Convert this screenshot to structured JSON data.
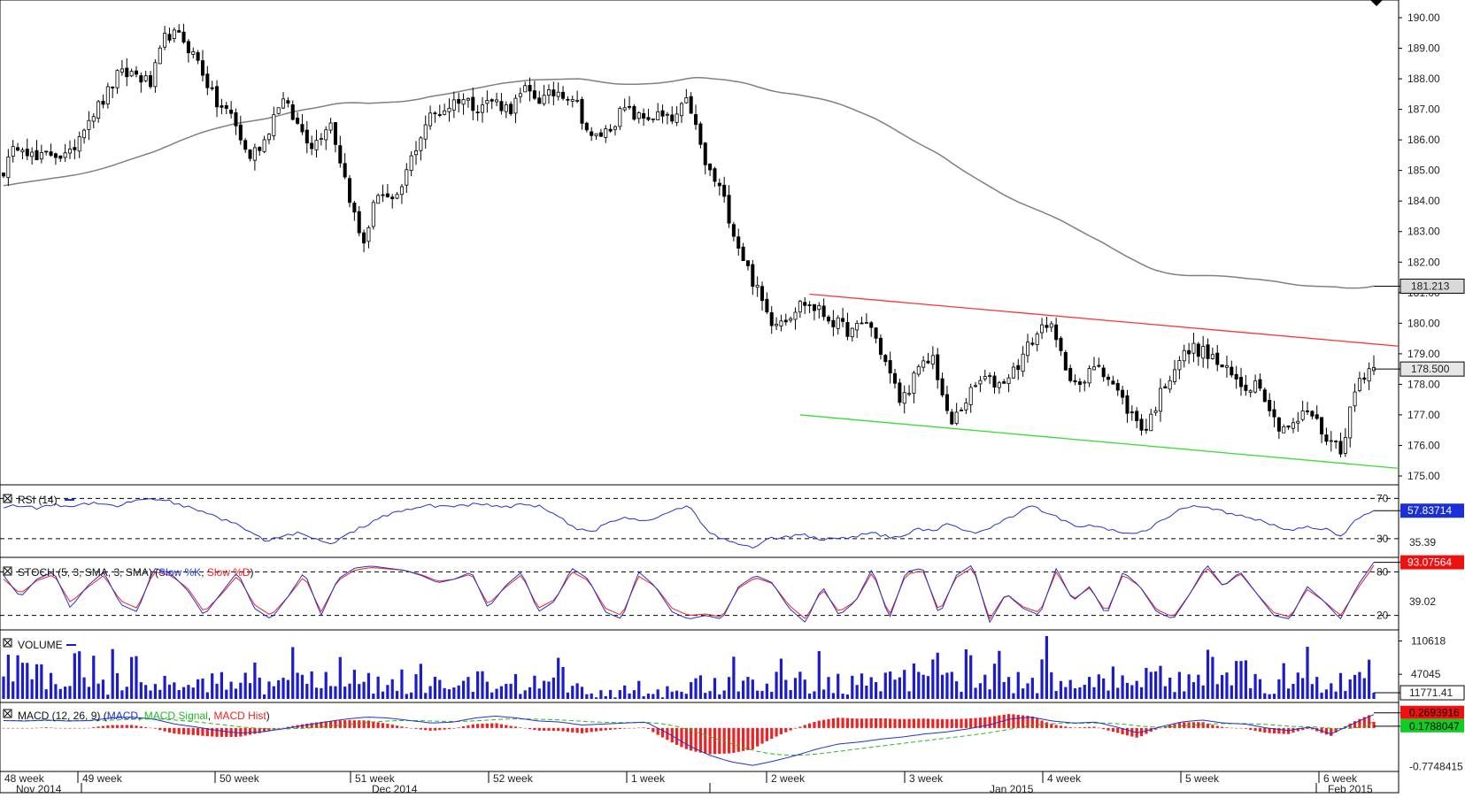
{
  "colors": {
    "up_candle": "#ffffff",
    "down_candle": "#000000",
    "candle_outline": "#000000",
    "sma_line": "#808080",
    "resistance_line": "#ff3333",
    "support_line": "#33dd33",
    "rsi_line": "#2233cc",
    "stoch_k": "#2233cc",
    "stoch_d": "#ee2222",
    "volume_bar": "#1c1ccc",
    "macd_line": "#2233cc",
    "macd_signal": "#22bb22",
    "macd_hist": "#ee2222",
    "current_price_box": "#d9d9d9",
    "rsi_value_box": "#1a2fd6",
    "stoch_value_box": "#ee1111",
    "macd_value_box_red": "#ee1111",
    "macd_value_box_green": "#11cc22"
  },
  "chart_data": [
    {
      "type": "candlestick",
      "panel": "price",
      "ylim": [
        175.0,
        190.0
      ],
      "y_ticks": [
        "190.00",
        "189.00",
        "188.00",
        "187.00",
        "186.00",
        "185.00",
        "184.00",
        "183.00",
        "182.00",
        "181.00",
        "180.00",
        "179.00",
        "178.00",
        "177.00",
        "176.00",
        "175.00"
      ],
      "current_price_label": "178.500",
      "current_price": 178.5,
      "sma_label": "181.213",
      "sma_value": 181.213,
      "resistance_line": {
        "start": 180.95,
        "end": 179.25
      },
      "support_line": {
        "start": 177.0,
        "end": 175.25
      },
      "anchors": [
        185.0,
        186.0,
        185.3,
        185.6,
        185.4,
        186.6,
        187.2,
        188.1,
        188.2,
        187.8,
        189.5,
        189.3,
        188.5,
        187.2,
        186.8,
        185.4,
        186.0,
        187.4,
        186.5,
        185.8,
        186.7,
        184.6,
        182.5,
        184.4,
        183.8,
        185.4,
        186.7,
        187.0,
        187.4,
        187.1,
        187.3,
        187.0,
        187.6,
        187.3,
        187.6,
        187.4,
        186.0,
        186.3,
        187.0,
        186.7,
        186.8,
        186.6,
        187.3,
        185.2,
        184.3,
        182.6,
        181.3,
        180.1,
        180.2,
        180.7,
        180.4,
        180.0,
        179.7,
        180.1,
        178.8,
        177.4,
        178.4,
        178.9,
        176.6,
        177.5,
        178.2,
        178.0,
        178.5,
        179.4,
        180.1,
        178.7,
        177.8,
        178.8,
        178.0,
        177.1,
        176.5,
        177.8,
        178.8,
        179.2,
        178.9,
        178.4,
        177.9,
        178.1,
        176.7,
        176.6,
        177.2,
        176.3,
        175.9,
        178.1,
        178.7
      ],
      "last_candle": {
        "open": 178.45,
        "high": 178.95,
        "low": 178.3,
        "close": 178.55
      }
    },
    {
      "type": "line",
      "panel": "rsi",
      "title": "RSI (14)",
      "levels": [
        70,
        30
      ],
      "ylim": [
        15,
        80
      ],
      "level_labels": [
        "70",
        "30"
      ],
      "extra_label": "35.39",
      "value_label": "57.83714",
      "value": 57.83714,
      "anchors": [
        62,
        63,
        60,
        64,
        62,
        65,
        66,
        62,
        68,
        70,
        68,
        63,
        57,
        52,
        46,
        38,
        28,
        32,
        36,
        30,
        24,
        33,
        42,
        50,
        56,
        59,
        63,
        62,
        63,
        64,
        63,
        62,
        64,
        62,
        52,
        40,
        36,
        45,
        52,
        48,
        50,
        58,
        64,
        40,
        30,
        24,
        22,
        30,
        32,
        34,
        30,
        29,
        31,
        36,
        33,
        30,
        40,
        38,
        45,
        38,
        36,
        46,
        54,
        62,
        56,
        48,
        42,
        44,
        38,
        35,
        38,
        48,
        58,
        62,
        60,
        56,
        52,
        48,
        42,
        38,
        42,
        40,
        32,
        50,
        57.8
      ]
    },
    {
      "type": "line",
      "panel": "stochastic",
      "title": "STOCH (5, 3, SMA, 3, SMA)",
      "legend": [
        "Slow %K",
        "Slow %D"
      ],
      "levels": [
        80,
        20
      ],
      "ylim": [
        5,
        95
      ],
      "level_labels": [
        "80",
        "20"
      ],
      "extra_label": "39.02",
      "value_label": "93.07564",
      "value": 93.07564,
      "k_anchors": [
        75,
        45,
        70,
        80,
        30,
        60,
        80,
        35,
        25,
        85,
        78,
        55,
        20,
        50,
        80,
        30,
        15,
        45,
        80,
        20,
        70,
        85,
        88,
        85,
        82,
        75,
        65,
        70,
        80,
        30,
        60,
        80,
        25,
        40,
        85,
        70,
        25,
        15,
        80,
        60,
        25,
        15,
        20,
        15,
        60,
        75,
        65,
        30,
        10,
        60,
        20,
        40,
        85,
        15,
        80,
        85,
        20,
        75,
        90,
        10,
        50,
        30,
        20,
        85,
        40,
        60,
        20,
        80,
        60,
        25,
        15,
        50,
        90,
        60,
        80,
        50,
        20,
        15,
        60,
        40,
        15,
        60,
        93
      ],
      "d_anchors": [
        70,
        50,
        68,
        76,
        38,
        58,
        75,
        40,
        30,
        80,
        75,
        58,
        25,
        48,
        75,
        35,
        20,
        45,
        74,
        25,
        68,
        82,
        86,
        84,
        82,
        76,
        67,
        70,
        77,
        35,
        58,
        76,
        30,
        42,
        80,
        68,
        30,
        20,
        74,
        60,
        30,
        20,
        22,
        18,
        58,
        72,
        64,
        34,
        15,
        56,
        25,
        40,
        80,
        20,
        76,
        82,
        25,
        72,
        86,
        15,
        50,
        32,
        24,
        80,
        42,
        58,
        24,
        76,
        60,
        28,
        18,
        50,
        86,
        60,
        78,
        50,
        24,
        18,
        56,
        40,
        20,
        56,
        88
      ]
    },
    {
      "type": "bar",
      "panel": "volume",
      "title": "VOLUME",
      "ylim": [
        0,
        125000
      ],
      "y_ticks": [
        "110618",
        "47045"
      ],
      "value_label": "11771.41",
      "value": 11771.41
    },
    {
      "type": "line",
      "panel": "macd",
      "title": "MACD (12, 26, 9)",
      "legend": [
        "MACD",
        "MACD Signal",
        "MACD Hist"
      ],
      "ylim": [
        -0.8,
        0.3
      ],
      "y_ticks": [
        "-0.7748415"
      ],
      "value_labels": [
        "0.2693916",
        "0.1788047"
      ],
      "values": [
        0.2693916,
        0.1788047
      ],
      "anchors": [
        0.15,
        0.14,
        0.16,
        0.14,
        0.15,
        0.2,
        0.22,
        0.18,
        0.08,
        0.02,
        -0.05,
        -0.1,
        -0.08,
        -0.02,
        0.05,
        0.12,
        0.18,
        0.22,
        0.2,
        0.15,
        0.1,
        0.12,
        0.2,
        0.24,
        0.2,
        0.14,
        0.12,
        0.06,
        0.08,
        0.1,
        0.12,
        -0.1,
        -0.35,
        -0.55,
        -0.68,
        -0.75,
        -0.66,
        -0.55,
        -0.42,
        -0.32,
        -0.28,
        -0.22,
        -0.18,
        -0.12,
        -0.08,
        -0.02,
        0.06,
        0.18,
        0.22,
        0.14,
        0.1,
        0.12,
        0.02,
        -0.1,
        0.02,
        0.12,
        0.16,
        0.1,
        0.08,
        0.0,
        -0.05,
        0.02,
        -0.12,
        0.08,
        0.27
      ]
    }
  ],
  "panels": {
    "rsi_title": "RSI (14)",
    "stoch_title": "STOCH (5, 3, SMA, 3, SMA)",
    "stoch_legend_k": "Slow %K",
    "stoch_legend_d": "Slow %D",
    "volume_title": "VOLUME",
    "macd_title": "MACD (12, 26, 9)",
    "macd_legend_macd": "MACD",
    "macd_legend_signal": "MACD Signal",
    "macd_legend_hist": "MACD Hist"
  },
  "time_axis": {
    "weeks": [
      "48 week",
      "49 week",
      "50 week",
      "51 week",
      "52 week",
      "1 week",
      "2 week",
      "3 week",
      "4 week",
      "5 week",
      "6 week"
    ],
    "months": [
      "Nov 2014",
      "Dec 2014",
      "Jan 2015",
      "Feb 2015"
    ]
  }
}
